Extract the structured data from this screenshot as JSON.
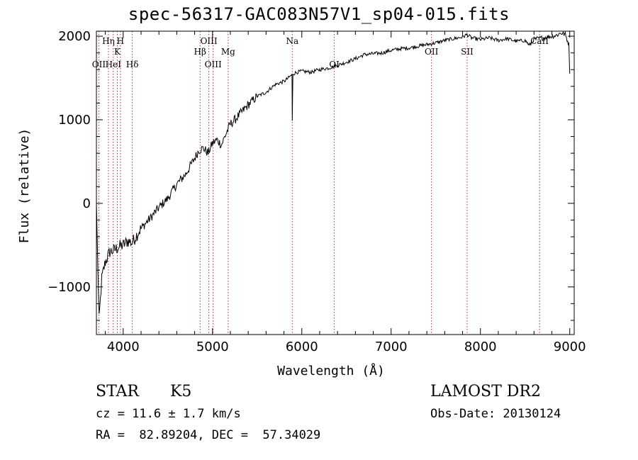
{
  "chart_data": {
    "type": "line",
    "title": "spec-56317-GAC083N57V1_sp04-015.fits",
    "xlabel": "Wavelength (Å)",
    "ylabel": "Flux (relative)",
    "xlim": [
      3700,
      9050
    ],
    "ylim": [
      -1570,
      2060
    ],
    "x_ticks": [
      4000,
      5000,
      6000,
      7000,
      8000,
      9000
    ],
    "y_ticks": [
      -1000,
      0,
      1000,
      2000
    ],
    "x_tick_labels": [
      "4000",
      "5000",
      "6000",
      "7000",
      "8000",
      "9000"
    ],
    "y_tick_labels": [
      "−1000",
      "0",
      "1000",
      "2000"
    ],
    "series": [
      {
        "color": "#000000",
        "x": [
          3700,
          3730,
          3760,
          3800,
          3850,
          3900,
          3950,
          4000,
          4050,
          4100,
          4150,
          4200,
          4300,
          4400,
          4500,
          4600,
          4700,
          4800,
          4850,
          4900,
          4950,
          5000,
          5050,
          5100,
          5150,
          5200,
          5250,
          5300,
          5350,
          5400,
          5450,
          5500,
          5600,
          5700,
          5800,
          5850,
          5890,
          5893,
          5900,
          5950,
          6000,
          6100,
          6200,
          6300,
          6400,
          6500,
          6600,
          6700,
          6800,
          6900,
          7000,
          7100,
          7200,
          7300,
          7400,
          7500,
          7600,
          7700,
          7800,
          7850,
          7900,
          8000,
          8100,
          8200,
          8300,
          8400,
          8500,
          8550,
          8600,
          8700,
          8800,
          8850,
          8900,
          8950,
          8990,
          9000
        ],
        "y": [
          0,
          -1400,
          -900,
          -700,
          -580,
          -560,
          -520,
          -500,
          -450,
          -470,
          -380,
          -300,
          -180,
          -50,
          60,
          230,
          350,
          540,
          640,
          660,
          600,
          720,
          760,
          700,
          830,
          950,
          1000,
          1060,
          1120,
          1180,
          1230,
          1280,
          1330,
          1420,
          1460,
          1500,
          1540,
          980,
          1550,
          1570,
          1580,
          1570,
          1600,
          1620,
          1650,
          1690,
          1730,
          1780,
          1790,
          1800,
          1830,
          1850,
          1860,
          1880,
          1900,
          1920,
          1950,
          1970,
          1990,
          2020,
          1980,
          1960,
          1980,
          1950,
          1970,
          1940,
          1950,
          1890,
          1960,
          1980,
          2000,
          2010,
          2040,
          2020,
          1900,
          1550
        ]
      }
    ],
    "line_markers": [
      {
        "label": "Hη",
        "wavelength": 3835,
        "row": 0
      },
      {
        "label": "OII",
        "wavelength": 3727,
        "row": 3
      },
      {
        "label": "HeI",
        "wavelength": 3889,
        "row": 3
      },
      {
        "label": "K",
        "wavelength": 3934,
        "row": 1
      },
      {
        "label": "H",
        "wavelength": 3969,
        "row": 0
      },
      {
        "label": "Hδ",
        "wavelength": 4102,
        "row": 3
      },
      {
        "label": "Hβ",
        "wavelength": 4861,
        "row": 2
      },
      {
        "label": "OIII",
        "wavelength": 4959,
        "row": 0
      },
      {
        "label": "OIII",
        "wavelength": 5007,
        "row": 3
      },
      {
        "label": "Mg",
        "wavelength": 5175,
        "row": 2
      },
      {
        "label": "Na",
        "wavelength": 5893,
        "row": 0
      },
      {
        "label": "OI",
        "wavelength": 6364,
        "row": 3
      },
      {
        "label": "OII",
        "wavelength": 7452,
        "row": 2
      },
      {
        "label": "SII",
        "wavelength": 7851,
        "row": 2
      },
      {
        "label": "CaII",
        "wavelength": 8662,
        "row": 0
      }
    ],
    "grid": false,
    "legend": "none"
  },
  "info": {
    "object_class": "STAR",
    "subclass": "K5",
    "survey": "LAMOST DR2",
    "redshift_text": "cz = 11.6 ± 1.7 km/s",
    "obs_date_text": "Obs-Date: 20130124",
    "coords_text": "RA =  82.89204, DEC =  57.34029"
  }
}
